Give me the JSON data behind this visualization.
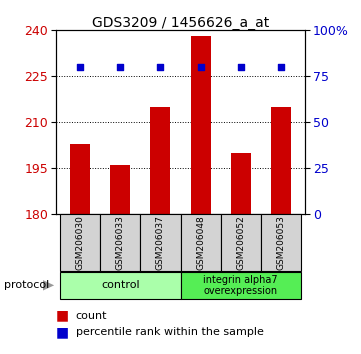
{
  "title": "GDS3209 / 1456626_a_at",
  "samples": [
    "GSM206030",
    "GSM206033",
    "GSM206037",
    "GSM206048",
    "GSM206052",
    "GSM206053"
  ],
  "counts": [
    203.0,
    196.0,
    215.0,
    238.0,
    200.0,
    215.0
  ],
  "percentile_rank": [
    80.0,
    80.0,
    80.0,
    80.0,
    80.0,
    80.0
  ],
  "ylim_left": [
    180,
    240
  ],
  "ylim_right": [
    0,
    100
  ],
  "yticks_left": [
    180,
    195,
    210,
    225,
    240
  ],
  "yticks_right": [
    0,
    25,
    50,
    75,
    100
  ],
  "ytick_labels_right": [
    "0",
    "25",
    "50",
    "75",
    "100%"
  ],
  "bar_color": "#cc0000",
  "dot_color": "#0000cc",
  "group1_label": "control",
  "group2_label": "integrin alpha7\noverexpression",
  "group1_color": "#aaffaa",
  "group2_color": "#55ee55",
  "protocol_label": "protocol",
  "legend_count": "count",
  "legend_percentile": "percentile rank within the sample",
  "left_axis_color": "#cc0000",
  "right_axis_color": "#0000cc",
  "bar_width": 0.5,
  "title_fontsize": 10,
  "tick_fontsize": 9,
  "sample_fontsize": 6.5,
  "group_fontsize": 8,
  "legend_fontsize": 8,
  "protocol_fontsize": 8
}
